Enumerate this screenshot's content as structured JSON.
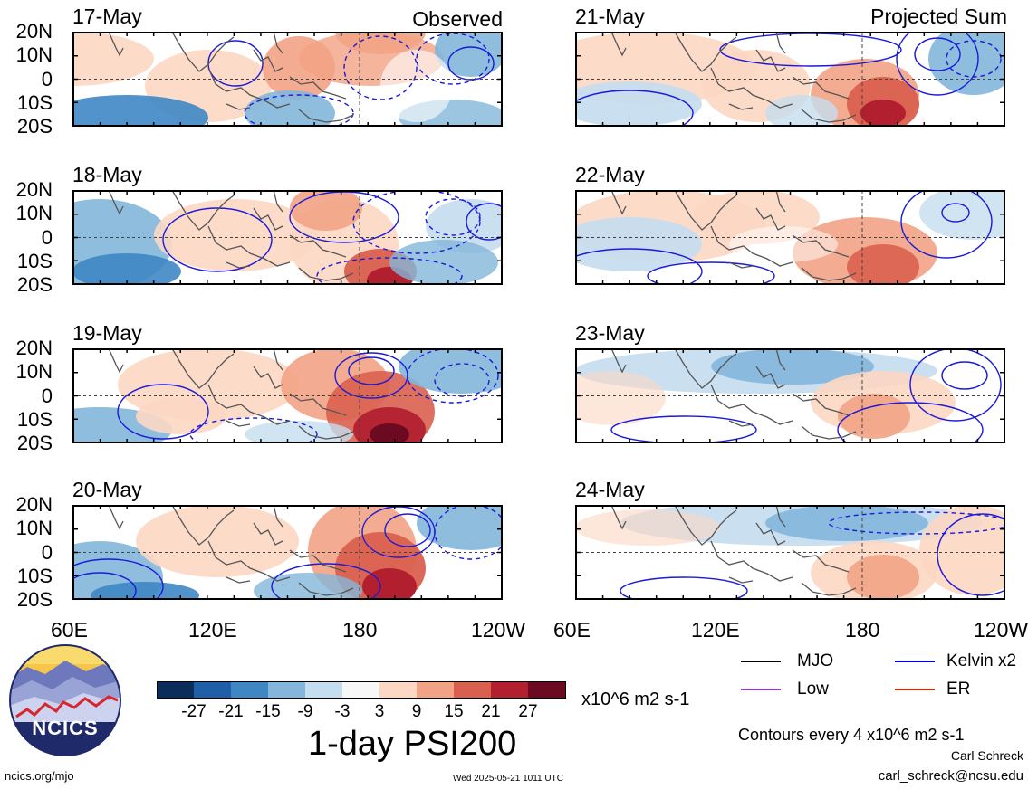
{
  "title": "1-day PSI200",
  "units": "x10^6 m2 s-1",
  "columns": {
    "left": "Observed",
    "right": "Projected Sum"
  },
  "panels_left": [
    {
      "date": "17-May"
    },
    {
      "date": "18-May"
    },
    {
      "date": "19-May"
    },
    {
      "date": "20-May"
    }
  ],
  "panels_right": [
    {
      "date": "21-May"
    },
    {
      "date": "22-May"
    },
    {
      "date": "23-May"
    },
    {
      "date": "24-May"
    }
  ],
  "lat_labels": [
    "20N",
    "10N",
    "0",
    "10S",
    "20S"
  ],
  "lon_labels": [
    "60E",
    "120E",
    "180",
    "120W"
  ],
  "lon_labels_right_last": "120W",
  "colorbar": {
    "ticks": [
      "-27",
      "-21",
      "-15",
      "-9",
      "-3",
      "3",
      "9",
      "15",
      "21",
      "27"
    ],
    "colors": [
      "#0b2d5c",
      "#1f5fa8",
      "#3e87c4",
      "#83b6da",
      "#c4ddef",
      "#f7f7f7",
      "#fcd7c3",
      "#f2a385",
      "#d9604f",
      "#b22030",
      "#6b0a20"
    ]
  },
  "legend": [
    {
      "label": "MJO",
      "color": "#000000"
    },
    {
      "label": "Kelvin x2",
      "color": "#0000e0"
    },
    {
      "label": "Low",
      "color": "#9933cc"
    },
    {
      "label": "ER",
      "color": "#dd2200"
    }
  ],
  "contour_note": "Contours every 4 x10^6 m2 s-1",
  "logo_text": "NCICS",
  "footer": {
    "url": "ncics.org/mjo",
    "timestamp": "Wed 2025-05-21 1011 UTC",
    "author": "Carl Schreck",
    "email": "carl_schreck@ncsu.edu"
  }
}
